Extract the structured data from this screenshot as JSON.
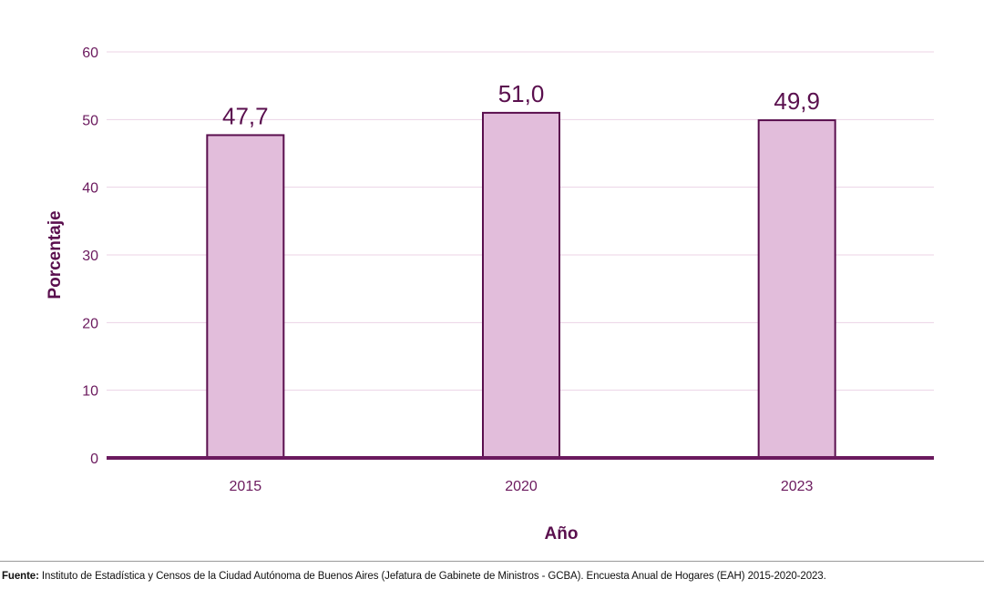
{
  "chart_data": {
    "type": "bar",
    "categories": [
      "2015",
      "2020",
      "2023"
    ],
    "values": [
      47.7,
      51.0,
      49.9
    ],
    "data_labels": [
      "47,7",
      "51,0",
      "49,9"
    ],
    "title": "",
    "xlabel": "Año",
    "ylabel": "Porcentaje",
    "ylim": [
      0,
      60
    ],
    "yticks": [
      0,
      10,
      20,
      30,
      40,
      50,
      60
    ],
    "grid": true,
    "legend": "none",
    "colors": {
      "bar_fill": "#e2bddb",
      "bar_stroke": "#5a0f4e",
      "axis": "#6b1a5e",
      "grid": "#ecd3e6"
    }
  },
  "source": {
    "prefix": "Fuente:",
    "text": " Instituto de Estadística y Censos de la Ciudad Autónoma de Buenos Aires (Jefatura de Gabinete de Ministros - GCBA). Encuesta Anual de Hogares (EAH) 2015-2020-2023."
  }
}
